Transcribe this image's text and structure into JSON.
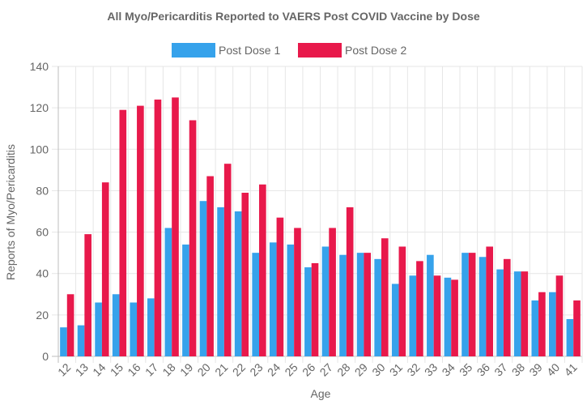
{
  "chart_data": {
    "type": "bar",
    "title": "All Myo/Pericarditis Reported to VAERS Post COVID Vaccine by Dose",
    "xlabel": "Age",
    "ylabel": "Reports of Myo/Pericarditis",
    "ylim": [
      0,
      140
    ],
    "yticks": [
      0,
      20,
      40,
      60,
      80,
      100,
      120,
      140
    ],
    "grid": true,
    "legend_position": "top-center",
    "categories": [
      "12",
      "13",
      "14",
      "15",
      "16",
      "17",
      "18",
      "19",
      "20",
      "21",
      "22",
      "23",
      "24",
      "25",
      "26",
      "27",
      "28",
      "29",
      "30",
      "31",
      "32",
      "33",
      "34",
      "35",
      "36",
      "37",
      "38",
      "39",
      "40",
      "41"
    ],
    "series": [
      {
        "name": "Post Dose 1",
        "color": "#36a2eb",
        "values": [
          14,
          15,
          26,
          30,
          26,
          28,
          62,
          54,
          75,
          72,
          70,
          50,
          55,
          54,
          43,
          53,
          49,
          50,
          47,
          35,
          39,
          49,
          38,
          50,
          48,
          42,
          41,
          27,
          31,
          18
        ]
      },
      {
        "name": "Post Dose 2",
        "color": "#e8194b",
        "values": [
          30,
          59,
          84,
          119,
          121,
          124,
          125,
          114,
          87,
          93,
          79,
          83,
          67,
          62,
          45,
          62,
          72,
          50,
          57,
          53,
          46,
          39,
          37,
          50,
          53,
          47,
          41,
          31,
          39,
          27
        ]
      }
    ]
  }
}
